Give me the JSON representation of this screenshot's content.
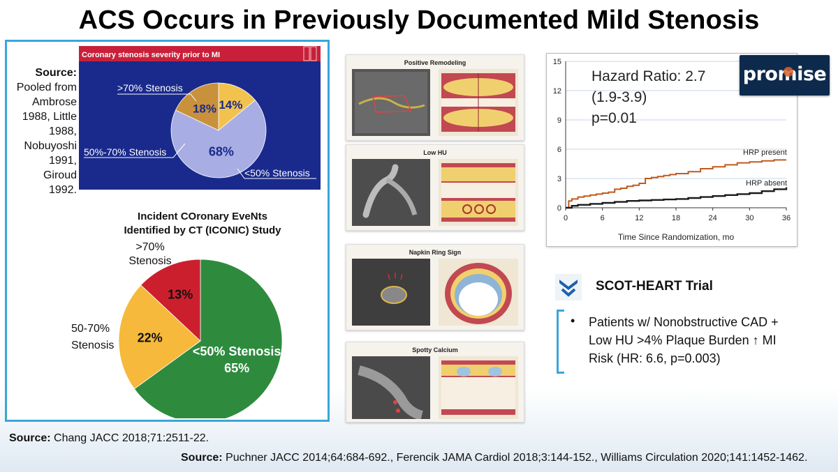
{
  "slide": {
    "title": "ACS Occurs in Previously Documented Mild Stenosis"
  },
  "left_source": {
    "label": "Source:",
    "text_lines": [
      "Pooled from",
      "Ambrose",
      "1988, Little",
      "1988,",
      "Nobuyoshi",
      "1991,",
      "Giroud",
      "1992."
    ]
  },
  "chart_data": [
    {
      "type": "pie",
      "title": "Coronary stenosis severity prior to MI",
      "categories": [
        "<50% Stenosis",
        "50%-70% Stenosis",
        ">70% Stenosis"
      ],
      "values": [
        68,
        18,
        14
      ],
      "value_labels": [
        "68%",
        "18%",
        "14%"
      ],
      "colors": [
        "#a8aee3",
        "#c9913c",
        "#f2c24e"
      ],
      "background": "#1a2a8c",
      "header_color": "#c8203a"
    },
    {
      "type": "pie",
      "title": "Incident COronary EveNts Identified by CT (ICONIC) Study",
      "title_lines": [
        "Incident COronary EveNts",
        "Identified by CT (ICONIC) Study"
      ],
      "categories": [
        "<50% Stenosis",
        "50-70% Stenosis",
        ">70% Stenosis"
      ],
      "category_display": [
        "<50% Stenosis",
        "50-70%\nStenosis",
        ">70%\nStenosis"
      ],
      "values": [
        65,
        22,
        13
      ],
      "value_labels": [
        "65%",
        "22%",
        "13%"
      ],
      "colors": [
        "#2e8b3e",
        "#f6b93b",
        "#cc1f2e"
      ]
    },
    {
      "type": "line",
      "title": "",
      "xlabel": "Time Since Randomization, mo",
      "ylabel": "",
      "xlim": [
        0,
        36
      ],
      "ylim": [
        0,
        15
      ],
      "xticks": [
        0,
        6,
        12,
        18,
        24,
        30,
        36
      ],
      "yticks": [
        0,
        3,
        6,
        9,
        12,
        15
      ],
      "grid": "horizontal",
      "series": [
        {
          "name": "HRP present",
          "color": "#c05a1c",
          "x": [
            0,
            0.5,
            1,
            2,
            3,
            4,
            5,
            6,
            7,
            8,
            9,
            10,
            11,
            12,
            13,
            14,
            15,
            16,
            17,
            18,
            20,
            22,
            24,
            26,
            28,
            30,
            32,
            34,
            36
          ],
          "y": [
            0,
            0.7,
            0.9,
            1.1,
            1.2,
            1.3,
            1.4,
            1.5,
            1.6,
            1.9,
            2.0,
            2.2,
            2.3,
            2.5,
            3.0,
            3.1,
            3.2,
            3.3,
            3.4,
            3.5,
            3.7,
            4.0,
            4.2,
            4.4,
            4.6,
            4.7,
            4.8,
            4.9,
            4.9
          ]
        },
        {
          "name": "HRP absent",
          "color": "#1a1a1a",
          "x": [
            0,
            1,
            2,
            4,
            6,
            8,
            10,
            12,
            14,
            16,
            18,
            20,
            22,
            24,
            26,
            28,
            30,
            32,
            34,
            36
          ],
          "y": [
            0,
            0.2,
            0.3,
            0.4,
            0.5,
            0.6,
            0.7,
            0.75,
            0.8,
            0.85,
            0.9,
            1.0,
            1.1,
            1.2,
            1.3,
            1.4,
            1.5,
            1.7,
            1.9,
            2.1
          ]
        }
      ],
      "annotations": [
        "Hazard Ratio: 2.7",
        "(1.9-3.9)",
        "p=0.01"
      ]
    }
  ],
  "plaque_cards": [
    {
      "title": "Positive Remodeling"
    },
    {
      "title": "Low HU"
    },
    {
      "title": "Napkin Ring Sign"
    },
    {
      "title": "Spotty Calcium"
    }
  ],
  "promise_logo": {
    "text": "promise"
  },
  "scot_heart": {
    "title": "SCOT-HEART Trial",
    "bullet": "•",
    "lines": [
      "Patients w/ Nonobstructive CAD +",
      "Low HU >4% Plaque Burden ↑ MI",
      "Risk (HR: 6.6, p=0.003)"
    ]
  },
  "sources": {
    "left": {
      "label": "Source:",
      "text": "Chang JACC 2018;71:2511-22."
    },
    "bottom": {
      "label": "Source:",
      "text": "Puchner JACC 2014;64:684-692.,  Ferencik JAMA Cardiol 2018;3:144-152., Williams Circulation 2020;141:1452-1462."
    }
  },
  "colors": {
    "panel_border": "#3aa6d9",
    "bracket": "#3aa6d9"
  }
}
